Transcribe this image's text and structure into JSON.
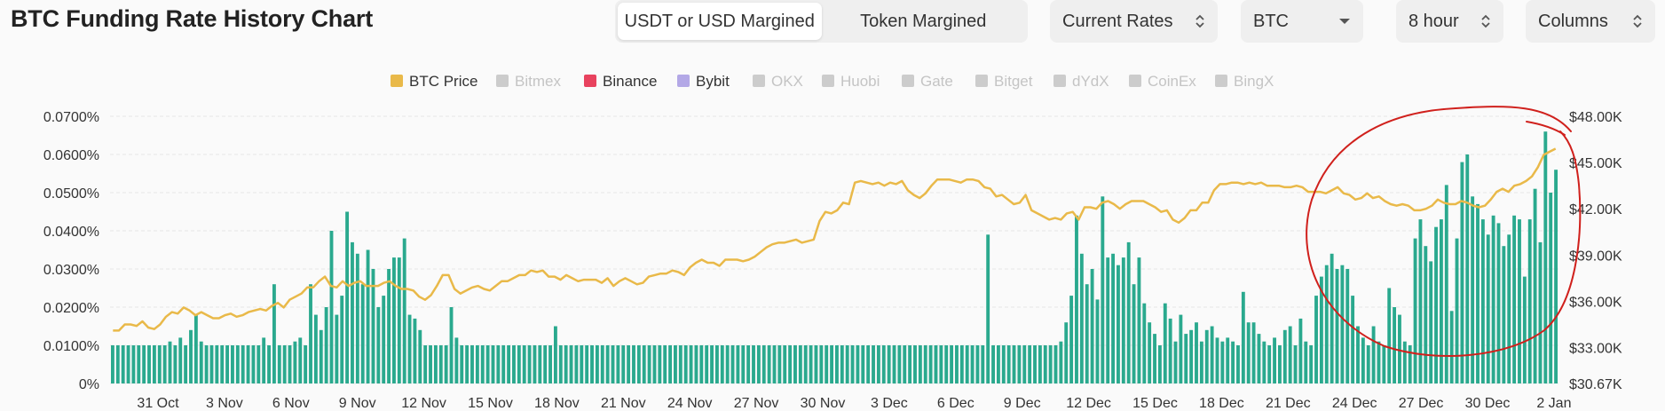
{
  "header": {
    "title": "BTC Funding Rate History Chart",
    "margin_options": [
      "USDT or USD Margined",
      "Token Margined"
    ],
    "margin_selected": "USDT or USD Margined",
    "rate_mode": "Current Rates",
    "coin": "BTC",
    "interval": "8 hour",
    "view": "Columns"
  },
  "colors": {
    "bars": "#2aa98e",
    "price_line": "#e9b949",
    "annotation": "#d0201c",
    "grid": "#e6e6e6"
  },
  "legend": [
    {
      "name": "BTC Price",
      "color": "#e9b949",
      "active": true
    },
    {
      "name": "Bitmex",
      "color": "#cccccc",
      "active": false
    },
    {
      "name": "Binance",
      "color": "#e8425e",
      "active": true
    },
    {
      "name": "Bybit",
      "color": "#b3a8e6",
      "active": true
    },
    {
      "name": "OKX",
      "color": "#cccccc",
      "active": false
    },
    {
      "name": "Huobi",
      "color": "#cccccc",
      "active": false
    },
    {
      "name": "Gate",
      "color": "#cccccc",
      "active": false
    },
    {
      "name": "Bitget",
      "color": "#cccccc",
      "active": false
    },
    {
      "name": "dYdX",
      "color": "#cccccc",
      "active": false
    },
    {
      "name": "CoinEx",
      "color": "#cccccc",
      "active": false
    },
    {
      "name": "BingX",
      "color": "#cccccc",
      "active": false
    }
  ],
  "chart_data": {
    "type": "bar",
    "title": "BTC Funding Rate History Chart",
    "x_tick_labels": [
      "31 Oct",
      "3 Nov",
      "6 Nov",
      "9 Nov",
      "12 Nov",
      "15 Nov",
      "18 Nov",
      "21 Nov",
      "24 Nov",
      "27 Nov",
      "30 Nov",
      "3 Dec",
      "6 Dec",
      "9 Dec",
      "12 Dec",
      "15 Dec",
      "18 Dec",
      "21 Dec",
      "24 Dec",
      "27 Dec",
      "30 Dec",
      "2 Jan"
    ],
    "y_left_ticks": [
      "0.0700%",
      "0.0600%",
      "0.0500%",
      "0.0400%",
      "0.0300%",
      "0.0200%",
      "0.0100%",
      "0%"
    ],
    "y_right_ticks": [
      "$48.00K",
      "$45.00K",
      "$42.00K",
      "$39.00K",
      "$36.00K",
      "$33.00K",
      "$30.67K"
    ],
    "y_left_range": [
      0,
      0.07
    ],
    "y_right_range": [
      30670,
      48000
    ],
    "grid": true,
    "legend_position": "top-center",
    "series": [
      {
        "name": "Binance",
        "type": "bar",
        "values": [
          0.01,
          0.01,
          0.01,
          0.01,
          0.01,
          0.01,
          0.01,
          0.01,
          0.01,
          0.01,
          0.01,
          0.011,
          0.01,
          0.012,
          0.01,
          0.014,
          0.018,
          0.011,
          0.01,
          0.01,
          0.01,
          0.01,
          0.01,
          0.01,
          0.01,
          0.01,
          0.01,
          0.01,
          0.01,
          0.012,
          0.01,
          0.026,
          0.01,
          0.01,
          0.01,
          0.011,
          0.012,
          0.01,
          0.026,
          0.018,
          0.014,
          0.02,
          0.04,
          0.018,
          0.023,
          0.045,
          0.037,
          0.034,
          0.026,
          0.035,
          0.03,
          0.02,
          0.023,
          0.03,
          0.033,
          0.033,
          0.038,
          0.018,
          0.017,
          0.014,
          0.01,
          0.01,
          0.01,
          0.01,
          0.01,
          0.02,
          0.012,
          0.01,
          0.01,
          0.01,
          0.01,
          0.01,
          0.01,
          0.01,
          0.01,
          0.01,
          0.01,
          0.01,
          0.01,
          0.01,
          0.01,
          0.01,
          0.01,
          0.01,
          0.01,
          0.015,
          0.01,
          0.01,
          0.01,
          0.01,
          0.01,
          0.01,
          0.01,
          0.01,
          0.01,
          0.01,
          0.01,
          0.01,
          0.01,
          0.01,
          0.01,
          0.01,
          0.01,
          0.01,
          0.01,
          0.01,
          0.01,
          0.01,
          0.01,
          0.01,
          0.01,
          0.01,
          0.01,
          0.01,
          0.01,
          0.01,
          0.01,
          0.01,
          0.01,
          0.01,
          0.01,
          0.01,
          0.01,
          0.01,
          0.01,
          0.01,
          0.01,
          0.01,
          0.01,
          0.01,
          0.01,
          0.01,
          0.01,
          0.01,
          0.01,
          0.01,
          0.01,
          0.01,
          0.01,
          0.01,
          0.01,
          0.01,
          0.01,
          0.01,
          0.01,
          0.01,
          0.01,
          0.01,
          0.01,
          0.01,
          0.01,
          0.01,
          0.01,
          0.01,
          0.01,
          0.01,
          0.01,
          0.01,
          0.01,
          0.01,
          0.01,
          0.01,
          0.01,
          0.01,
          0.01,
          0.01,
          0.01,
          0.01,
          0.039,
          0.01,
          0.01,
          0.01,
          0.01,
          0.01,
          0.01,
          0.01,
          0.01,
          0.01,
          0.01,
          0.01,
          0.01,
          0.01,
          0.011,
          0.016,
          0.023,
          0.044,
          0.034,
          0.026,
          0.03,
          0.022,
          0.049,
          0.033,
          0.034,
          0.031,
          0.033,
          0.037,
          0.026,
          0.033,
          0.021,
          0.016,
          0.013,
          0.01,
          0.021,
          0.017,
          0.011,
          0.018,
          0.013,
          0.014,
          0.016,
          0.011,
          0.014,
          0.015,
          0.012,
          0.011,
          0.012,
          0.011,
          0.01,
          0.024,
          0.016,
          0.016,
          0.013,
          0.011,
          0.01,
          0.012,
          0.01,
          0.014,
          0.015,
          0.01,
          0.017,
          0.011,
          0.01,
          0.023,
          0.028,
          0.031,
          0.034,
          0.03,
          0.031,
          0.03,
          0.023,
          0.015,
          0.012,
          0.01,
          0.015,
          0.011,
          0.01,
          0.025,
          0.02,
          0.018,
          0.011,
          0.01,
          0.038,
          0.043,
          0.036,
          0.032,
          0.041,
          0.043,
          0.052,
          0.019,
          0.038,
          0.058,
          0.06,
          0.049,
          0.047,
          0.043,
          0.039,
          0.044,
          0.042,
          0.036,
          0.039,
          0.044,
          0.043,
          0.028,
          0.043,
          0.051,
          0.037,
          0.066,
          0.05,
          0.056
        ]
      },
      {
        "name": "BTC Price",
        "type": "line",
        "axis": "right",
        "values": [
          34100,
          34100,
          34500,
          34500,
          34400,
          34700,
          34300,
          34200,
          34500,
          35000,
          35300,
          35200,
          35600,
          35400,
          35100,
          35300,
          35100,
          34900,
          34900,
          35100,
          35200,
          35000,
          35100,
          35300,
          35400,
          35500,
          35400,
          35700,
          35900,
          35600,
          36100,
          36300,
          36500,
          36900,
          36900,
          37300,
          37600,
          37000,
          36900,
          37300,
          37000,
          37200,
          37300,
          37000,
          37000,
          37000,
          37200,
          37300,
          37000,
          36800,
          36800,
          36700,
          36300,
          36100,
          36400,
          37000,
          37700,
          37700,
          36800,
          36500,
          36700,
          36900,
          37000,
          36800,
          36700,
          37000,
          37300,
          37300,
          37500,
          37700,
          37700,
          38000,
          37900,
          38000,
          37600,
          37600,
          37400,
          37700,
          37500,
          37300,
          37400,
          37400,
          37400,
          37200,
          37500,
          37000,
          37300,
          37500,
          37300,
          37100,
          37200,
          37600,
          37700,
          37800,
          37800,
          38000,
          37900,
          37700,
          38200,
          38500,
          38700,
          38500,
          38500,
          38300,
          38700,
          38700,
          38700,
          38600,
          38700,
          38900,
          39200,
          39500,
          39700,
          39800,
          39800,
          39900,
          40000,
          39800,
          39900,
          40000,
          41200,
          41800,
          41700,
          41900,
          42400,
          42300,
          43700,
          43800,
          43700,
          43600,
          43700,
          43500,
          43700,
          43600,
          43800,
          43200,
          42900,
          42700,
          43000,
          43500,
          43900,
          43900,
          43900,
          43800,
          43700,
          43900,
          43900,
          43800,
          43400,
          43300,
          42800,
          42900,
          42600,
          42300,
          42400,
          42900,
          41900,
          41700,
          41500,
          41300,
          41400,
          41300,
          41700,
          41800,
          41300,
          42100,
          42100,
          42000,
          42400,
          42500,
          42300,
          42000,
          42300,
          42500,
          42500,
          42500,
          42300,
          42100,
          41800,
          41900,
          41300,
          41100,
          41400,
          41900,
          41900,
          42400,
          42400,
          43200,
          43600,
          43600,
          43700,
          43700,
          43600,
          43700,
          43600,
          43700,
          43500,
          43500,
          43500,
          43400,
          43400,
          43500,
          43400,
          43100,
          43100,
          43100,
          43000,
          43200,
          43400,
          43000,
          42900,
          42600,
          42700,
          43000,
          42700,
          42800,
          42500,
          42300,
          42200,
          42300,
          42200,
          41900,
          41900,
          42000,
          42200,
          42600,
          42400,
          42300,
          42300,
          42500,
          42400,
          42200,
          42100,
          42200,
          42600,
          43100,
          43300,
          43100,
          43500,
          43600,
          43800,
          44100,
          44700,
          45500,
          45700,
          45900
        ]
      }
    ]
  }
}
